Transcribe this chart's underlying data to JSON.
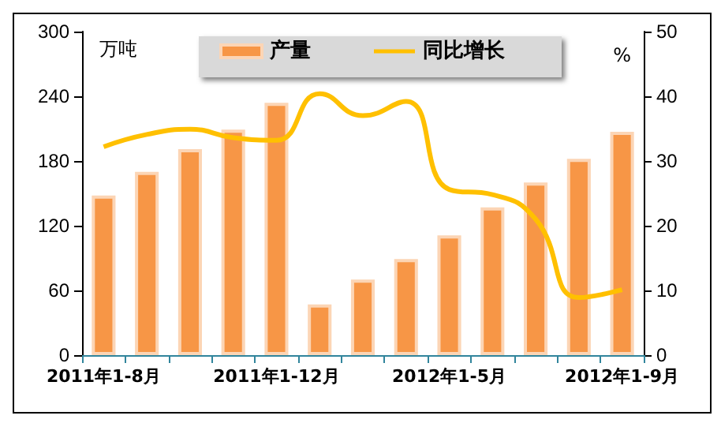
{
  "chart_data": {
    "type": "bar",
    "ylabel": "万吨",
    "y2label": "%",
    "categories": [
      "2011年1-8月",
      null,
      null,
      null,
      "2011年1-12月",
      null,
      null,
      null,
      "2012年1-5月",
      null,
      null,
      null,
      "2012年1-9月"
    ],
    "series": [
      {
        "name": "产量",
        "color": "#f79646",
        "values": [
          148,
          170,
          191,
          209,
          234,
          47,
          70,
          89,
          111,
          137,
          160,
          182,
          207
        ]
      },
      {
        "name": "同比增长",
        "type": "line",
        "axis": "y2",
        "color": "#ffc000",
        "values": [
          32.2,
          34.1,
          34.9,
          33.6,
          33.2,
          40.4,
          37.0,
          39.2,
          25.6,
          24.8,
          21,
          8.9,
          10.1
        ]
      }
    ],
    "ylim": [
      0,
      300
    ],
    "yticks": [
      0,
      60,
      120,
      180,
      240,
      300
    ],
    "y2lim": [
      0,
      50
    ],
    "y2ticks": [
      0,
      10,
      20,
      30,
      40,
      50
    ],
    "grid": false,
    "legend": "top",
    "marker": "none"
  }
}
